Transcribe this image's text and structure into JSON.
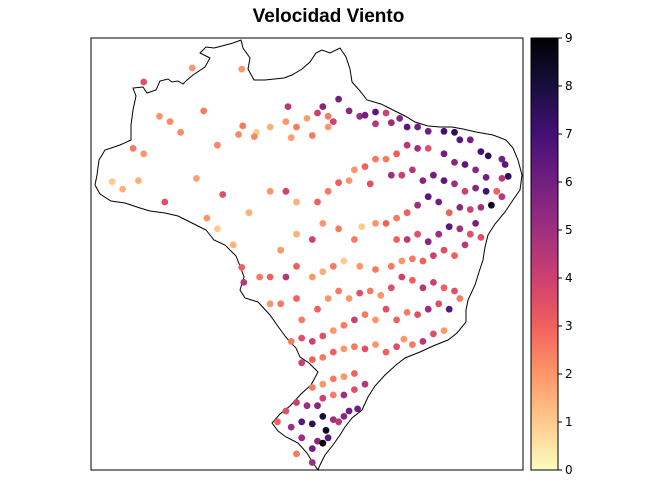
{
  "title": "Velocidad Viento",
  "colorbar": {
    "min": 0,
    "max": 9,
    "ticks": [
      "0",
      "1",
      "2",
      "3",
      "4",
      "5",
      "6",
      "7",
      "8",
      "9"
    ],
    "palette": [
      "#fcfdbf",
      "#feca8d",
      "#fd9668",
      "#f1605d",
      "#cd4071",
      "#9e2f7f",
      "#721f81",
      "#440f76",
      "#180f3d",
      "#000004"
    ]
  },
  "map": {
    "region": "Brazil",
    "outline": "black",
    "bbox_lonlat": {
      "lon_min": -74.5,
      "lon_max": -33.5,
      "lat_min": -34.5,
      "lat_max": 5.8
    }
  },
  "chart_data": {
    "type": "scatter",
    "title": "Velocidad Viento",
    "value_range": [
      0,
      9
    ],
    "points": [
      [
        -64.9,
        3.0,
        2.0
      ],
      [
        -60.2,
        2.9,
        2.0
      ],
      [
        -58.8,
        -3.0,
        1.0
      ],
      [
        -60.1,
        -2.4,
        2.5
      ],
      [
        -63.8,
        -1.0,
        2.5
      ],
      [
        -68.0,
        -1.5,
        2.0
      ],
      [
        -69.5,
        1.7,
        3.5
      ],
      [
        -67.0,
        -2.0,
        2.2
      ],
      [
        -66.0,
        -3.0,
        2.2
      ],
      [
        -62.5,
        -4.2,
        2.3
      ],
      [
        -60.5,
        -3.2,
        2.2
      ],
      [
        -59.0,
        -3.4,
        2.3
      ],
      [
        -57.5,
        -2.5,
        1.5
      ],
      [
        -56.0,
        -2.0,
        2.0
      ],
      [
        -55.0,
        -2.5,
        2.5
      ],
      [
        -55.5,
        -3.5,
        1.8
      ],
      [
        -55.8,
        -0.6,
        4.5
      ],
      [
        -54.0,
        -1.7,
        1.8
      ],
      [
        -53.0,
        -1.2,
        4.0
      ],
      [
        -52.5,
        -0.6,
        5.5
      ],
      [
        -52.0,
        -1.5,
        2.5
      ],
      [
        -53.5,
        -3.3,
        2.5
      ],
      [
        -52.0,
        -2.5,
        2.0
      ],
      [
        -51.0,
        0.1,
        6.0
      ],
      [
        -51.5,
        -2.0,
        4.0
      ],
      [
        -50.0,
        -1.0,
        5.5
      ],
      [
        -49.0,
        -1.5,
        5.0
      ],
      [
        -48.5,
        -1.4,
        6.0
      ],
      [
        -47.5,
        -1.1,
        6.5
      ],
      [
        -47.5,
        -2.2,
        4.5
      ],
      [
        -46.5,
        -1.2,
        4.0
      ],
      [
        -46.0,
        -2.1,
        5.0
      ],
      [
        -45.2,
        -1.7,
        5.5
      ],
      [
        -44.5,
        -2.5,
        6.5
      ],
      [
        -43.5,
        -2.5,
        6.0
      ],
      [
        -42.5,
        -2.9,
        6.0
      ],
      [
        -41.0,
        -2.9,
        7.0
      ],
      [
        -40.0,
        -3.0,
        7.5
      ],
      [
        -39.5,
        -3.7,
        6.5
      ],
      [
        -38.5,
        -3.7,
        6.0
      ],
      [
        -37.5,
        -4.8,
        7.0
      ],
      [
        -36.8,
        -5.2,
        7.5
      ],
      [
        -35.5,
        -5.5,
        6.0
      ],
      [
        -35.2,
        -6.0,
        6.5
      ],
      [
        -34.9,
        -7.1,
        7.5
      ],
      [
        -35.5,
        -7.3,
        4.5
      ],
      [
        -37.0,
        -7.2,
        6.0
      ],
      [
        -38.0,
        -6.5,
        5.5
      ],
      [
        -39.0,
        -6.0,
        6.5
      ],
      [
        -40.0,
        -5.8,
        5.5
      ],
      [
        -41.0,
        -5.0,
        6.0
      ],
      [
        -42.5,
        -4.5,
        3.5
      ],
      [
        -43.5,
        -4.5,
        5.0
      ],
      [
        -44.5,
        -4.2,
        4.5
      ],
      [
        -45.5,
        -5.0,
        3.0
      ],
      [
        -46.5,
        -5.5,
        2.5
      ],
      [
        -47.5,
        -5.5,
        2.5
      ],
      [
        -48.5,
        -6.2,
        3.0
      ],
      [
        -49.5,
        -6.5,
        2.0
      ],
      [
        -50.0,
        -7.5,
        2.0
      ],
      [
        -51.0,
        -7.7,
        3.0
      ],
      [
        -52.0,
        -8.5,
        2.5
      ],
      [
        -53.0,
        -9.5,
        3.0
      ],
      [
        -55.0,
        -9.5,
        1.5
      ],
      [
        -56.0,
        -8.5,
        4.0
      ],
      [
        -57.5,
        -8.5,
        2.0
      ],
      [
        -59.5,
        -10.5,
        1.5
      ],
      [
        -62.0,
        -8.8,
        3.5
      ],
      [
        -64.5,
        -7.3,
        1.8
      ],
      [
        -67.5,
        -9.5,
        3.5
      ],
      [
        -70.0,
        -7.5,
        1.5
      ],
      [
        -71.5,
        -8.3,
        1.5
      ],
      [
        -72.5,
        -7.6,
        1.0
      ],
      [
        -70.5,
        -4.5,
        2.5
      ],
      [
        -69.5,
        -5.0,
        2.0
      ],
      [
        -48.0,
        -7.8,
        3.5
      ],
      [
        -46.0,
        -7.0,
        5.0
      ],
      [
        -45.0,
        -7.0,
        4.0
      ],
      [
        -44.0,
        -6.5,
        4.5
      ],
      [
        -43.0,
        -7.5,
        5.5
      ],
      [
        -42.0,
        -7.0,
        6.0
      ],
      [
        -41.0,
        -7.5,
        6.5
      ],
      [
        -40.0,
        -7.8,
        5.0
      ],
      [
        -39.0,
        -8.5,
        4.0
      ],
      [
        -38.0,
        -8.2,
        5.5
      ],
      [
        -37.0,
        -8.5,
        7.0
      ],
      [
        -36.0,
        -8.5,
        3.0
      ],
      [
        -35.5,
        -9.0,
        4.5
      ],
      [
        -36.5,
        -9.8,
        8.5
      ],
      [
        -37.5,
        -10.0,
        5.0
      ],
      [
        -38.5,
        -10.2,
        4.0
      ],
      [
        -39.5,
        -10.0,
        5.5
      ],
      [
        -40.5,
        -10.5,
        3.0
      ],
      [
        -41.5,
        -9.5,
        6.0
      ],
      [
        -42.5,
        -9.0,
        6.5
      ],
      [
        -43.5,
        -9.8,
        5.0
      ],
      [
        -44.5,
        -10.5,
        3.0
      ],
      [
        -45.5,
        -11.0,
        2.5
      ],
      [
        -46.5,
        -11.5,
        3.0
      ],
      [
        -47.5,
        -11.5,
        2.0
      ],
      [
        -48.8,
        -11.8,
        1.0
      ],
      [
        -49.5,
        -13.0,
        2.5
      ],
      [
        -51.0,
        -12.0,
        2.5
      ],
      [
        -52.5,
        -11.5,
        2.0
      ],
      [
        -53.5,
        -13.0,
        4.0
      ],
      [
        -55.0,
        -12.5,
        1.5
      ],
      [
        -56.5,
        -14.0,
        2.0
      ],
      [
        -45.5,
        -13.0,
        3.0
      ],
      [
        -44.5,
        -13.0,
        4.5
      ],
      [
        -43.5,
        -12.5,
        3.5
      ],
      [
        -42.5,
        -13.2,
        5.5
      ],
      [
        -41.5,
        -12.5,
        5.0
      ],
      [
        -40.5,
        -11.8,
        6.5
      ],
      [
        -39.5,
        -12.0,
        5.0
      ],
      [
        -38.5,
        -12.5,
        3.5
      ],
      [
        -38.0,
        -11.5,
        6.0
      ],
      [
        -37.5,
        -12.8,
        3.5
      ],
      [
        -39.0,
        -13.5,
        4.5
      ],
      [
        -40.0,
        -14.5,
        3.0
      ],
      [
        -41.0,
        -14.0,
        3.5
      ],
      [
        -42.0,
        -14.5,
        4.0
      ],
      [
        -43.0,
        -15.0,
        3.0
      ],
      [
        -44.0,
        -14.8,
        2.5
      ],
      [
        -45.0,
        -15.0,
        2.0
      ],
      [
        -46.0,
        -15.5,
        2.5
      ],
      [
        -47.5,
        -15.8,
        2.5
      ],
      [
        -49.0,
        -15.5,
        2.0
      ],
      [
        -50.5,
        -15.0,
        1.0
      ],
      [
        -51.5,
        -15.5,
        2.5
      ],
      [
        -52.5,
        -16.0,
        1.5
      ],
      [
        -53.5,
        -16.5,
        2.0
      ],
      [
        -55.0,
        -15.5,
        3.0
      ],
      [
        -56.0,
        -16.5,
        4.5
      ],
      [
        -57.5,
        -16.5,
        3.0
      ],
      [
        -58.5,
        -16.5,
        2.5
      ],
      [
        -60.0,
        -17.0,
        4.5
      ],
      [
        -60.2,
        -15.6,
        3.0
      ],
      [
        -61.0,
        -13.5,
        1.5
      ],
      [
        -62.5,
        -12.0,
        1.0
      ],
      [
        -63.5,
        -11.0,
        2.0
      ],
      [
        -57.5,
        -19.0,
        2.0
      ],
      [
        -56.5,
        -19.0,
        2.5
      ],
      [
        -55.0,
        -18.5,
        3.0
      ],
      [
        -54.5,
        -20.5,
        2.5
      ],
      [
        -53.0,
        -19.5,
        3.0
      ],
      [
        -52.0,
        -18.5,
        2.0
      ],
      [
        -51.0,
        -17.8,
        2.5
      ],
      [
        -50.0,
        -18.5,
        2.0
      ],
      [
        -49.0,
        -18.0,
        3.5
      ],
      [
        -48.0,
        -17.8,
        2.5
      ],
      [
        -47.0,
        -18.2,
        2.0
      ],
      [
        -46.0,
        -17.5,
        3.5
      ],
      [
        -45.0,
        -16.5,
        4.0
      ],
      [
        -44.0,
        -16.8,
        3.0
      ],
      [
        -43.0,
        -17.5,
        4.5
      ],
      [
        -42.0,
        -17.0,
        4.0
      ],
      [
        -41.0,
        -17.5,
        3.0
      ],
      [
        -40.0,
        -17.8,
        3.5
      ],
      [
        -39.5,
        -18.5,
        2.5
      ],
      [
        -40.5,
        -19.5,
        6.5
      ],
      [
        -41.5,
        -19.0,
        3.5
      ],
      [
        -42.5,
        -19.5,
        5.0
      ],
      [
        -43.5,
        -20.0,
        3.5
      ],
      [
        -44.5,
        -19.8,
        2.5
      ],
      [
        -45.5,
        -20.5,
        3.0
      ],
      [
        -46.5,
        -19.5,
        3.5
      ],
      [
        -47.5,
        -20.5,
        2.0
      ],
      [
        -48.5,
        -20.0,
        2.5
      ],
      [
        -49.5,
        -20.5,
        4.0
      ],
      [
        -50.5,
        -21.0,
        2.5
      ],
      [
        -51.5,
        -21.5,
        2.0
      ],
      [
        -52.5,
        -22.0,
        3.5
      ],
      [
        -53.5,
        -22.5,
        4.0
      ],
      [
        -54.5,
        -22.2,
        3.5
      ],
      [
        -55.5,
        -22.5,
        2.5
      ],
      [
        -41.0,
        -21.5,
        2.0
      ],
      [
        -42.0,
        -21.8,
        3.5
      ],
      [
        -43.0,
        -22.5,
        4.5
      ],
      [
        -44.0,
        -22.8,
        2.5
      ],
      [
        -44.8,
        -22.3,
        2.0
      ],
      [
        -45.5,
        -23.0,
        3.5
      ],
      [
        -46.5,
        -23.5,
        3.0
      ],
      [
        -47.5,
        -22.8,
        2.0
      ],
      [
        -48.5,
        -23.2,
        3.5
      ],
      [
        -49.5,
        -23.0,
        2.5
      ],
      [
        -50.5,
        -23.2,
        2.0
      ],
      [
        -51.5,
        -23.5,
        3.0
      ],
      [
        -52.5,
        -24.0,
        2.5
      ],
      [
        -53.5,
        -24.2,
        3.0
      ],
      [
        -54.5,
        -24.5,
        4.0
      ],
      [
        -49.5,
        -25.5,
        3.0
      ],
      [
        -50.5,
        -25.8,
        2.0
      ],
      [
        -51.5,
        -26.0,
        2.5
      ],
      [
        -52.5,
        -26.5,
        2.0
      ],
      [
        -53.5,
        -26.8,
        2.5
      ],
      [
        -48.5,
        -26.5,
        4.5
      ],
      [
        -49.5,
        -27.0,
        3.5
      ],
      [
        -50.5,
        -27.5,
        5.0
      ],
      [
        -51.5,
        -27.5,
        2.5
      ],
      [
        -52.5,
        -27.8,
        4.0
      ],
      [
        -53.0,
        -28.5,
        5.5
      ],
      [
        -54.0,
        -28.5,
        5.0
      ],
      [
        -55.0,
        -28.2,
        4.0
      ],
      [
        -56.0,
        -29.0,
        3.5
      ],
      [
        -56.8,
        -30.0,
        3.0
      ],
      [
        -55.5,
        -30.5,
        5.0
      ],
      [
        -54.5,
        -30.0,
        6.5
      ],
      [
        -53.5,
        -30.2,
        7.5
      ],
      [
        -52.5,
        -29.5,
        8.0
      ],
      [
        -51.5,
        -29.8,
        5.0
      ],
      [
        -51.0,
        -30.0,
        4.5
      ],
      [
        -50.5,
        -29.5,
        5.5
      ],
      [
        -52.2,
        -30.8,
        8.5
      ],
      [
        -52.0,
        -31.5,
        6.5
      ],
      [
        -53.0,
        -31.8,
        5.5
      ],
      [
        -52.5,
        -32.0,
        9.0
      ],
      [
        -53.5,
        -32.5,
        6.0
      ],
      [
        -54.5,
        -31.5,
        5.0
      ],
      [
        -55.0,
        -33.0,
        2.5
      ],
      [
        -53.5,
        -33.8,
        5.0
      ],
      [
        -50.0,
        -29.0,
        6.0
      ],
      [
        -49.2,
        -28.8,
        6.0
      ]
    ]
  }
}
